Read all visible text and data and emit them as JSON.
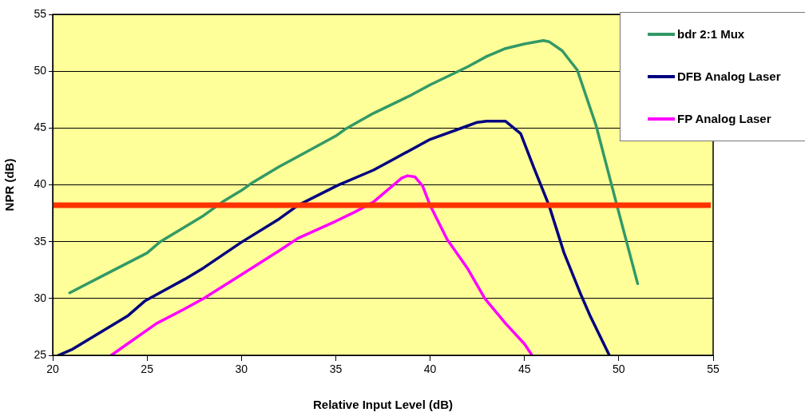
{
  "chart_data": {
    "type": "line",
    "xlabel": "Relative Input Level (dB)",
    "ylabel": "NPR (dB)",
    "xlim": [
      20,
      55
    ],
    "xticks": [
      20,
      25,
      30,
      35,
      40,
      45,
      50,
      55
    ],
    "ylim": [
      25,
      55
    ],
    "yticks": [
      25,
      30,
      35,
      40,
      45,
      50,
      55
    ],
    "grid": "y",
    "legend": "top right",
    "marker": "none",
    "line_style": "solid",
    "series": [
      {
        "name": "bdr 2:1 Mux",
        "color": "#339966",
        "x": [
          20.9,
          23,
          25,
          25.7,
          27,
          28,
          29,
          30,
          30.5,
          32,
          33,
          35,
          35.5,
          37,
          39,
          40,
          42,
          43,
          44,
          45,
          46,
          46.3,
          47,
          47.8,
          48.8,
          49.9,
          51
        ],
        "values": [
          30.5,
          32.3,
          34,
          35,
          36.3,
          37.3,
          38.5,
          39.5,
          40.1,
          41.6,
          42.5,
          44.3,
          44.9,
          46.3,
          47.9,
          48.8,
          50.4,
          51.3,
          52,
          52.4,
          52.7,
          52.6,
          51.8,
          50.1,
          45.2,
          38.2,
          31.3
        ]
      },
      {
        "name": "DFB Analog Laser",
        "color": "#000080",
        "x": [
          20.3,
          21,
          22,
          24,
          24.9,
          26,
          27,
          28,
          30,
          32,
          33,
          35.1,
          37,
          38,
          40,
          42,
          42.5,
          43,
          44,
          44.8,
          45.5,
          46.3,
          47.1,
          48,
          48.5,
          49.5
        ],
        "values": [
          25,
          25.5,
          26.5,
          28.5,
          29.8,
          30.8,
          31.7,
          32.7,
          34.95,
          37,
          38.2,
          39.96,
          41.3,
          42.2,
          44,
          45.2,
          45.5,
          45.6,
          45.6,
          44.5,
          41.5,
          38.2,
          34,
          30.3,
          28.4,
          25
        ]
      },
      {
        "name": "FP Analog Laser",
        "color": "#ff00ff",
        "x": [
          23.1,
          24,
          25.5,
          26.9,
          28,
          30,
          32,
          33,
          35,
          36,
          37,
          38,
          38.5,
          38.8,
          39.2,
          39.6,
          40,
          40.9,
          42,
          42.9,
          44,
          45,
          45.4
        ],
        "values": [
          25,
          26.05,
          27.8,
          29,
          30,
          32.1,
          34.2,
          35.3,
          36.8,
          37.6,
          38.5,
          39.9,
          40.6,
          40.8,
          40.7,
          39.9,
          38.2,
          35.2,
          32.6,
          30,
          27.8,
          26,
          25
        ]
      }
    ],
    "ref_lines": [
      {
        "axis": "y",
        "value": 38.2,
        "color": "#ff3300"
      }
    ]
  }
}
